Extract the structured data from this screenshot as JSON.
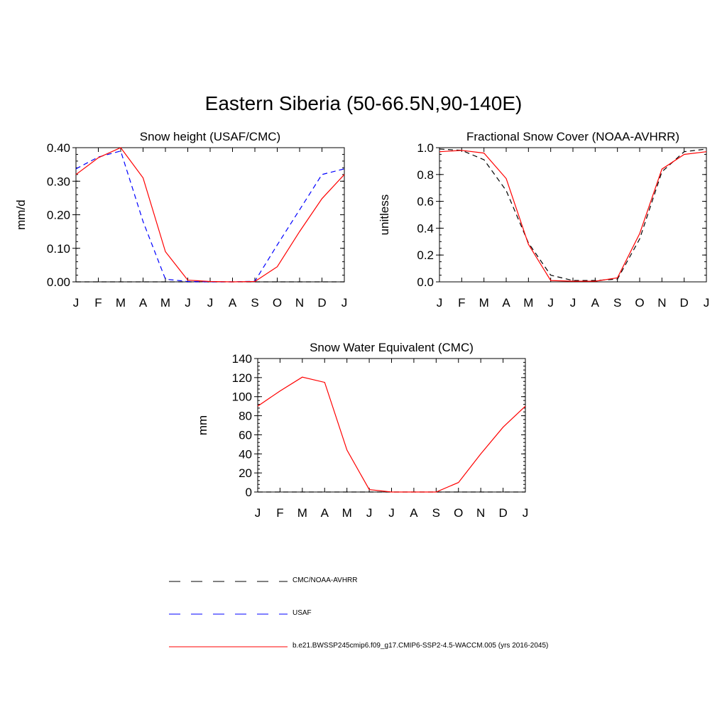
{
  "page": {
    "title": "Eastern Siberia (50-66.5N,90-140E)"
  },
  "legend": {
    "entries": [
      {
        "label": "CMC/NOAA-AVHRR",
        "color": "#000000",
        "dash": "dashed"
      },
      {
        "label": "USAF",
        "color": "#0000ff",
        "dash": "dashed"
      },
      {
        "label": "b.e21.BWSSP245cmip6.f09_g17.CMIP6-SSP2-4.5-WACCM.005 (yrs 2016-2045)",
        "color": "#ff0000",
        "dash": "solid"
      }
    ]
  },
  "chart_data": [
    {
      "type": "line",
      "title": "Snow height (USAF/CMC)",
      "xlabel": "",
      "ylabel": "mm/d",
      "x_ticks": [
        "J",
        "F",
        "M",
        "A",
        "M",
        "J",
        "J",
        "A",
        "S",
        "O",
        "N",
        "D",
        "J"
      ],
      "ylim": [
        0,
        0.4
      ],
      "y_ticks": [
        "0.00",
        "0.10",
        "0.20",
        "0.30",
        "0.40"
      ],
      "y_tick_values": [
        0,
        0.1,
        0.2,
        0.3,
        0.4
      ],
      "y_minor": 0.02,
      "series": [
        {
          "name": "CMC/NOAA-AVHRR",
          "color": "#000000",
          "dash": "dashed",
          "values": [
            0,
            0,
            0,
            0,
            0,
            0,
            0,
            0,
            0,
            0,
            0,
            0,
            0
          ]
        },
        {
          "name": "USAF",
          "color": "#0000ff",
          "dash": "dashed",
          "values": [
            0.337,
            0.372,
            0.39,
            0.18,
            0.008,
            0.001,
            0,
            0,
            0.002,
            0.11,
            0.215,
            0.32,
            0.337
          ]
        },
        {
          "name": "b.e21.BWSSP245cmip6.f09_g17.CMIP6-SSP2-4.5-WACCM.005 (yrs 2016-2045)",
          "color": "#ff0000",
          "dash": "solid",
          "values": [
            0.32,
            0.37,
            0.4,
            0.31,
            0.09,
            0.005,
            0.001,
            0,
            0.001,
            0.045,
            0.15,
            0.248,
            0.32
          ]
        }
      ]
    },
    {
      "type": "line",
      "title": "Fractional Snow Cover (NOAA-AVHRR)",
      "xlabel": "",
      "ylabel": "unitless",
      "x_ticks": [
        "J",
        "F",
        "M",
        "A",
        "M",
        "J",
        "J",
        "A",
        "S",
        "O",
        "N",
        "D",
        "J"
      ],
      "ylim": [
        0,
        1.0
      ],
      "y_ticks": [
        "0.0",
        "0.2",
        "0.4",
        "0.6",
        "0.8",
        "1.0"
      ],
      "y_tick_values": [
        0,
        0.2,
        0.4,
        0.6,
        0.8,
        1.0
      ],
      "y_minor": 0.05,
      "series": [
        {
          "name": "CMC/NOAA-AVHRR",
          "color": "#000000",
          "dash": "dashed",
          "values": [
            0.99,
            0.98,
            0.91,
            0.68,
            0.29,
            0.05,
            0.01,
            0.01,
            0.02,
            0.32,
            0.82,
            0.97,
            0.99
          ]
        },
        {
          "name": "USAF",
          "color": "#0000ff",
          "dash": "dashed",
          "values": []
        },
        {
          "name": "b.e21.BWSSP245cmip6.f09_g17.CMIP6-SSP2-4.5-WACCM.005 (yrs 2016-2045)",
          "color": "#ff0000",
          "dash": "solid",
          "values": [
            0.97,
            0.98,
            0.96,
            0.77,
            0.28,
            0.01,
            0.005,
            0.005,
            0.03,
            0.36,
            0.84,
            0.95,
            0.97
          ]
        }
      ]
    },
    {
      "type": "line",
      "title": "Snow Water Equivalent (CMC)",
      "xlabel": "",
      "ylabel": "mm",
      "x_ticks": [
        "J",
        "F",
        "M",
        "A",
        "M",
        "J",
        "J",
        "A",
        "S",
        "O",
        "N",
        "D",
        "J"
      ],
      "ylim": [
        0,
        140
      ],
      "y_ticks": [
        "0",
        "20",
        "40",
        "60",
        "80",
        "100",
        "120",
        "140"
      ],
      "y_tick_values": [
        0,
        20,
        40,
        60,
        80,
        100,
        120,
        140
      ],
      "y_minor": 4,
      "series": [
        {
          "name": "CMC/NOAA-AVHRR",
          "color": "#000000",
          "dash": "dashed",
          "values": [
            0,
            0,
            0,
            0,
            0,
            0,
            0,
            0,
            0,
            0,
            0,
            0,
            0
          ]
        },
        {
          "name": "USAF",
          "color": "#0000ff",
          "dash": "dashed",
          "values": []
        },
        {
          "name": "b.e21.BWSSP245cmip6.f09_g17.CMIP6-SSP2-4.5-WACCM.005 (yrs 2016-2045)",
          "color": "#ff0000",
          "dash": "solid",
          "values": [
            90,
            106,
            120.5,
            115,
            44,
            2.5,
            0,
            0,
            0,
            10,
            40,
            68,
            90
          ]
        }
      ]
    }
  ]
}
